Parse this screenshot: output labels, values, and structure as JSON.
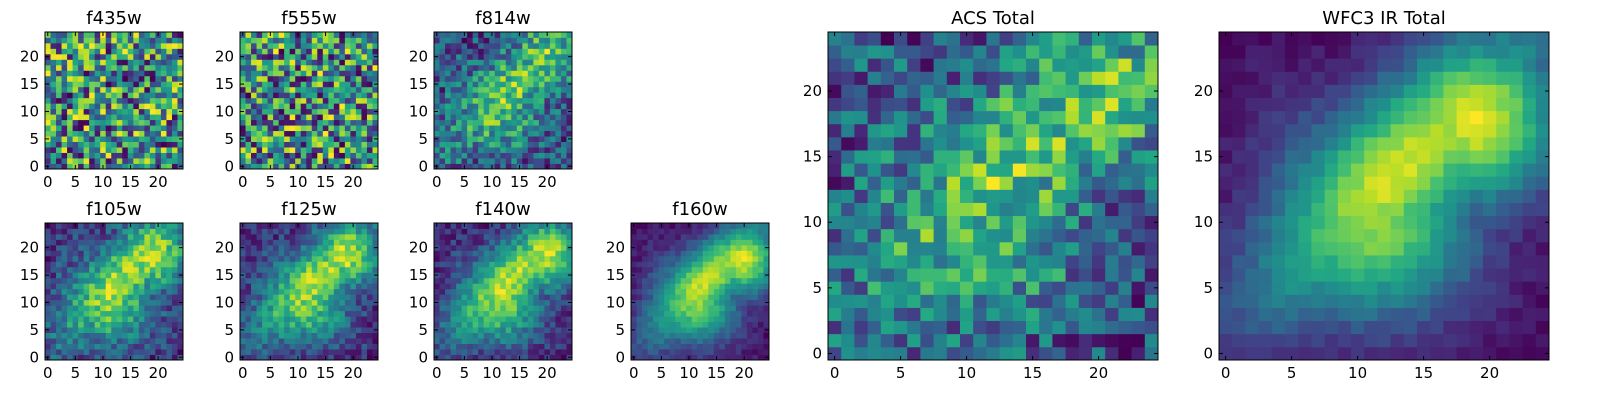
{
  "chart_data": [
    {
      "type": "heatmap",
      "title": "f435w",
      "grid": false,
      "xlim": [
        -0.5,
        24.5
      ],
      "ylim": [
        -0.5,
        24.5
      ],
      "xticks": [
        0,
        5,
        10,
        15,
        20
      ],
      "yticks": [
        0,
        5,
        10,
        15,
        20
      ],
      "colormap": "viridis",
      "pattern": "noise",
      "peak": [
        22,
        20
      ],
      "peak_strength": 0.0,
      "noise": 0.6,
      "seed": 11
    },
    {
      "type": "heatmap",
      "title": "f555w",
      "grid": false,
      "xlim": [
        -0.5,
        24.5
      ],
      "ylim": [
        -0.5,
        24.5
      ],
      "xticks": [
        0,
        5,
        10,
        15,
        20
      ],
      "yticks": [
        0,
        5,
        10,
        15,
        20
      ],
      "colormap": "viridis",
      "pattern": "noise",
      "peak": [
        20,
        20
      ],
      "peak_strength": 0.15,
      "noise": 0.55,
      "seed": 23
    },
    {
      "type": "heatmap",
      "title": "f814w",
      "grid": false,
      "xlim": [
        -0.5,
        24.5
      ],
      "ylim": [
        -0.5,
        24.5
      ],
      "xticks": [
        0,
        5,
        10,
        15,
        20
      ],
      "yticks": [
        0,
        5,
        10,
        15,
        20
      ],
      "colormap": "viridis",
      "pattern": "source",
      "peak": [
        20,
        20
      ],
      "peak_strength": 0.5,
      "noise": 0.4,
      "seed": 37
    },
    {
      "type": "heatmap",
      "title": "f105w",
      "grid": false,
      "xlim": [
        -0.5,
        24.5
      ],
      "ylim": [
        -0.5,
        24.5
      ],
      "xticks": [
        0,
        5,
        10,
        15,
        20
      ],
      "yticks": [
        0,
        5,
        10,
        15,
        20
      ],
      "colormap": "viridis",
      "pattern": "source",
      "peak": [
        19,
        19
      ],
      "peak_strength": 0.75,
      "noise": 0.28,
      "seed": 41
    },
    {
      "type": "heatmap",
      "title": "f125w",
      "grid": false,
      "xlim": [
        -0.5,
        24.5
      ],
      "ylim": [
        -0.5,
        24.5
      ],
      "xticks": [
        0,
        5,
        10,
        15,
        20
      ],
      "yticks": [
        0,
        5,
        10,
        15,
        20
      ],
      "colormap": "viridis",
      "pattern": "source",
      "peak": [
        19,
        19
      ],
      "peak_strength": 0.8,
      "noise": 0.26,
      "seed": 53
    },
    {
      "type": "heatmap",
      "title": "f140w",
      "grid": false,
      "xlim": [
        -0.5,
        24.5
      ],
      "ylim": [
        -0.5,
        24.5
      ],
      "xticks": [
        0,
        5,
        10,
        15,
        20
      ],
      "yticks": [
        0,
        5,
        10,
        15,
        20
      ],
      "colormap": "viridis",
      "pattern": "source",
      "peak": [
        20,
        19
      ],
      "peak_strength": 0.85,
      "noise": 0.22,
      "seed": 67
    },
    {
      "type": "heatmap",
      "title": "f160w",
      "grid": false,
      "xlim": [
        -0.5,
        24.5
      ],
      "ylim": [
        -0.5,
        24.5
      ],
      "xticks": [
        0,
        5,
        10,
        15,
        20
      ],
      "yticks": [
        0,
        5,
        10,
        15,
        20
      ],
      "colormap": "viridis",
      "pattern": "source",
      "peak": [
        20,
        18
      ],
      "peak_strength": 0.95,
      "noise": 0.12,
      "seed": 71
    },
    {
      "type": "heatmap",
      "title": "ACS Total",
      "grid": false,
      "xlim": [
        -0.5,
        24.5
      ],
      "ylim": [
        -0.5,
        24.5
      ],
      "xticks": [
        0,
        5,
        10,
        15,
        20
      ],
      "yticks": [
        0,
        5,
        10,
        15,
        20
      ],
      "colormap": "viridis",
      "pattern": "source",
      "peak": [
        20,
        20
      ],
      "peak_strength": 0.45,
      "noise": 0.38,
      "seed": 83
    },
    {
      "type": "heatmap",
      "title": "WFC3 IR Total",
      "grid": false,
      "xlim": [
        -0.5,
        24.5
      ],
      "ylim": [
        -0.5,
        24.5
      ],
      "xticks": [
        0,
        5,
        10,
        15,
        20
      ],
      "yticks": [
        0,
        5,
        10,
        15,
        20
      ],
      "colormap": "viridis",
      "pattern": "source",
      "peak": [
        19,
        18
      ],
      "peak_strength": 1.0,
      "noise": 0.08,
      "seed": 97
    }
  ]
}
